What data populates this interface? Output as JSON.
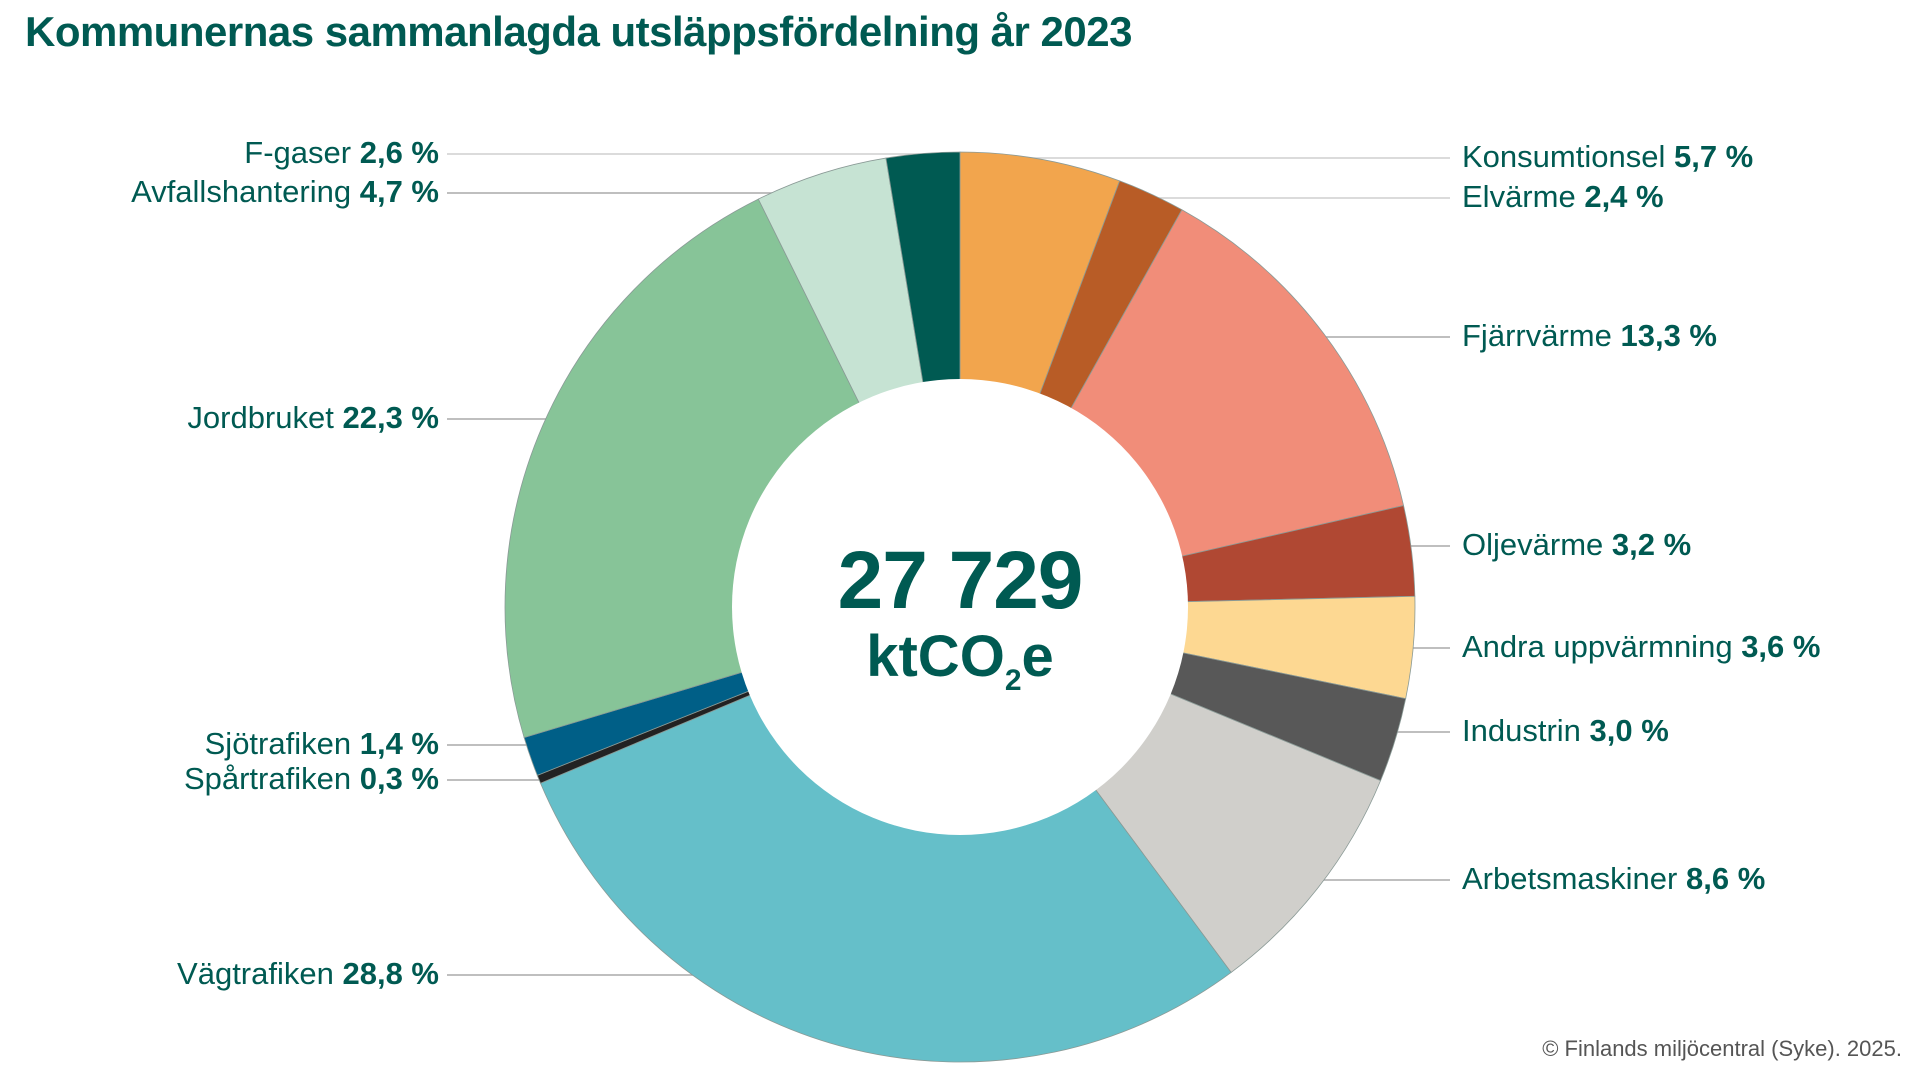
{
  "title": "Kommunernas sammanlagda utsläppsfördelning år 2023",
  "center": {
    "total": "27 729",
    "unit_prefix": "ktCO",
    "unit_subscript": "2",
    "unit_suffix": "e"
  },
  "copyright": "© Finlands miljöcentral (Syke). 2025.",
  "text_color": "#005a52",
  "chart_data": {
    "type": "pie",
    "variant": "donut",
    "title": "Kommunernas sammanlagda utsläppsfördelning år 2023",
    "center_label": "27 729 ktCO2e",
    "unit": "%",
    "start": "top",
    "direction": "clockwise",
    "slices": [
      {
        "name": "Konsumtionsel",
        "value": 5.7,
        "label": "5,7 %",
        "color": "#f2a54d",
        "side": "right"
      },
      {
        "name": "Elvärme",
        "value": 2.4,
        "label": "2,4 %",
        "color": "#b85c26",
        "side": "right"
      },
      {
        "name": "Fjärrvärme",
        "value": 13.3,
        "label": "13,3 %",
        "color": "#f18d79",
        "side": "right"
      },
      {
        "name": "Oljevärme",
        "value": 3.2,
        "label": "3,2 %",
        "color": "#b04833",
        "side": "right"
      },
      {
        "name": "Andra uppvärmning",
        "value": 3.6,
        "label": "3,6 %",
        "color": "#fdd892",
        "side": "right"
      },
      {
        "name": "Industrin",
        "value": 3.0,
        "label": "3,0 %",
        "color": "#585858",
        "side": "right"
      },
      {
        "name": "Arbetsmaskiner",
        "value": 8.6,
        "label": "8,6 %",
        "color": "#d0cfcb",
        "side": "right"
      },
      {
        "name": "Vägtrafiken",
        "value": 28.8,
        "label": "28,8 %",
        "color": "#65bfc9",
        "side": "left"
      },
      {
        "name": "Spårtrafiken",
        "value": 0.3,
        "label": "0,3 %",
        "color": "#222222",
        "side": "left"
      },
      {
        "name": "Sjötrafiken",
        "value": 1.4,
        "label": "1,4 %",
        "color": "#005f87",
        "side": "left"
      },
      {
        "name": "Jordbruket",
        "value": 22.3,
        "label": "22,3 %",
        "color": "#87c498",
        "side": "left"
      },
      {
        "name": "Avfallshantering",
        "value": 4.7,
        "label": "4,7 %",
        "color": "#c6e3d3",
        "side": "left"
      },
      {
        "name": "F-gaser",
        "value": 2.6,
        "label": "2,6 %",
        "color": "#005a52",
        "side": "left"
      }
    ]
  }
}
